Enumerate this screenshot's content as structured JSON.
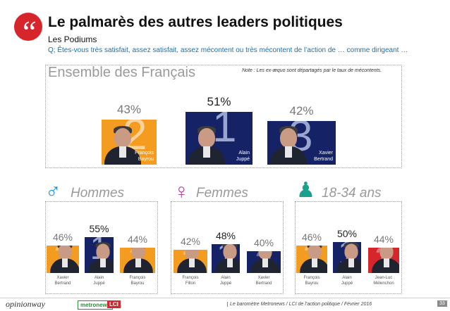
{
  "header": {
    "quote_mark": "“",
    "title": "Le palmarès des autres leaders politiques",
    "subtitle": "Les Podiums",
    "question": "Q; Êtes-vous très satisfait, assez satisfait, assez mécontent ou très mécontent de l’action de … comme dirigeant …"
  },
  "colors": {
    "orange": "#f39c1f",
    "navy": "#152265",
    "red": "#d7262b",
    "grey": "#9a9a9a",
    "men": "#1e8fd6",
    "women": "#b4469a",
    "young": "#1aa08c"
  },
  "chart_data": [
    {
      "type": "bar",
      "title": "Ensemble des Français",
      "note": "Note : Les ex-æquo sont départagés par le taux de mécontents.",
      "categories": [
        "François Bayrou",
        "Alain Juppé",
        "Xavier Bertrand"
      ],
      "ranks": [
        "2",
        "1",
        "3"
      ],
      "values": [
        43,
        51,
        42
      ],
      "labels": [
        "43%",
        "51%",
        "42%"
      ],
      "names": [
        [
          "François",
          "Bayrou"
        ],
        [
          "Alain",
          "Juppé"
        ],
        [
          "Xavier",
          "Bertrand"
        ]
      ],
      "ylim": [
        0,
        60
      ]
    },
    {
      "type": "bar",
      "title": "Hommes",
      "icon": "♂",
      "categories": [
        "Xavier Bertrand",
        "Alain Juppé",
        "François Bayrou"
      ],
      "ranks": [
        "2",
        "1",
        "3"
      ],
      "values": [
        46,
        55,
        44
      ],
      "labels": [
        "46%",
        "55%",
        "44%"
      ],
      "names": [
        [
          "Xavier",
          "Bertrand"
        ],
        [
          "Alain",
          "Juppé"
        ],
        [
          "François",
          "Bayrou"
        ]
      ],
      "ylim": [
        0,
        60
      ]
    },
    {
      "type": "bar",
      "title": "Femmes",
      "icon": "♀",
      "categories": [
        "François Fillon",
        "Alain Juppé",
        "Xavier Bertrand"
      ],
      "ranks": [
        "2",
        "1",
        "3"
      ],
      "values": [
        42,
        48,
        40
      ],
      "labels": [
        "42%",
        "48%",
        "40%"
      ],
      "names": [
        [
          "François",
          "Fillon"
        ],
        [
          "Alain",
          "Juppé"
        ],
        [
          "Xavier",
          "Bertrand"
        ]
      ],
      "ylim": [
        0,
        60
      ]
    },
    {
      "type": "bar",
      "title": "18-34 ans",
      "icon": "♟",
      "categories": [
        "François Bayrou",
        "Alain Juppé",
        "Jean-Luc Mélenchon"
      ],
      "ranks": [
        "2",
        "1",
        "3"
      ],
      "values": [
        46,
        50,
        44
      ],
      "labels": [
        "46%",
        "50%",
        "44%"
      ],
      "names": [
        [
          "François",
          "Bayrou"
        ],
        [
          "Alain",
          "Juppé"
        ],
        [
          "Jean-Luc",
          "Mélenchon"
        ]
      ],
      "ylim": [
        0,
        60
      ]
    }
  ],
  "footer": {
    "logo_opinionway": "opinionway",
    "logo_metronews": "metronews",
    "logo_lci": "LCI",
    "text": "Le baromètre Metronews / LCI de l’action politique / Février 2016",
    "page": "33"
  }
}
